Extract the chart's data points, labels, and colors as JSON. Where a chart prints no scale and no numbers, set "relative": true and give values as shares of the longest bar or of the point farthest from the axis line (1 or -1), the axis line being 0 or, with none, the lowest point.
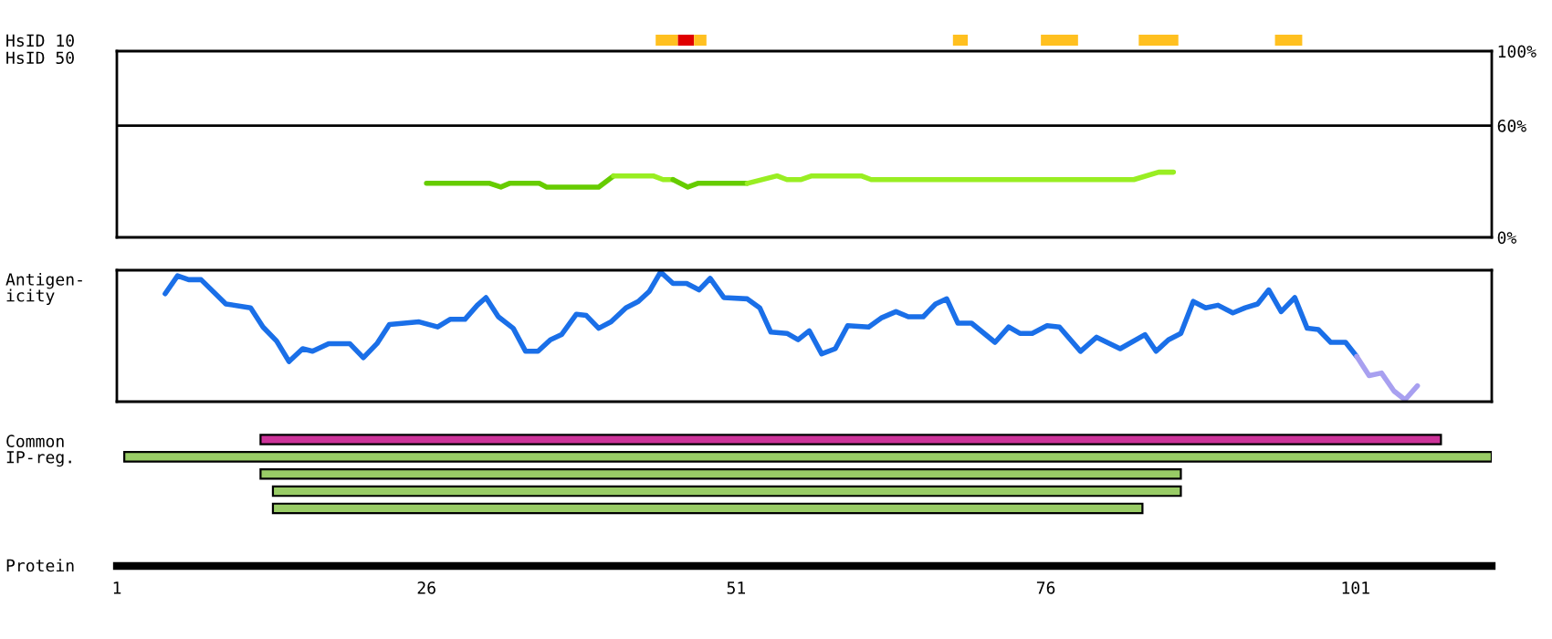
{
  "chart_data": [
    {
      "type": "bar",
      "orientation": "horizontal",
      "categories": [
        "HsID 10"
      ],
      "xlim": [
        1,
        112
      ],
      "tick_labels": "y",
      "series": [
        {
          "color": "#ffc020",
          "base": [
            44.5
          ],
          "values": [
            1.8
          ]
        },
        {
          "color": "#e00000",
          "base": [
            46.3
          ],
          "values": [
            1.3
          ]
        },
        {
          "color": "#ffc020",
          "base": [
            47.6
          ],
          "values": [
            1.0
          ]
        },
        {
          "color": "#ffc020",
          "base": [
            68.5
          ],
          "values": [
            1.2
          ]
        },
        {
          "color": "#ffc020",
          "base": [
            75.6
          ],
          "values": [
            3.0
          ]
        },
        {
          "color": "#ffc020",
          "base": [
            83.5
          ],
          "values": [
            3.2
          ]
        },
        {
          "color": "#ffc020",
          "base": [
            94.5
          ],
          "values": [
            2.2
          ]
        }
      ]
    },
    {
      "type": "line",
      "ylabel": "HsID 50",
      "xlim": [
        1,
        112
      ],
      "ylim": [
        0,
        100
      ],
      "tick_labels": "y",
      "yticks": [
        {
          "value": 0,
          "label": "0%"
        },
        {
          "value": 60,
          "label": "60%"
        },
        {
          "value": 100,
          "label": "100%"
        }
      ],
      "ref_lines": [
        {
          "axis": "y",
          "value": 60,
          "color": "#000000"
        }
      ],
      "series": [
        {
          "color": "#66cc00",
          "x": [
            26,
            31.1,
            32.0,
            32.7,
            35.1,
            35.7,
            39.9,
            41.1
          ],
          "values": [
            29,
            29,
            27,
            29,
            29,
            27,
            27,
            33
          ]
        },
        {
          "color": "#99ee22",
          "x": [
            41.1,
            44.3,
            45.1,
            45.9
          ],
          "values": [
            33,
            33,
            31,
            31
          ]
        },
        {
          "color": "#66cc00",
          "x": [
            45.9,
            47.1,
            47.9,
            51.9
          ],
          "values": [
            31,
            27,
            29,
            29
          ]
        },
        {
          "color": "#99ee22",
          "x": [
            51.9,
            54.3,
            55.1,
            56.2,
            57.1,
            61.1,
            61.9,
            83.1,
            85.1,
            86.3
          ],
          "values": [
            29,
            33,
            31,
            31,
            33,
            33,
            31,
            31,
            35,
            35
          ]
        }
      ]
    },
    {
      "type": "line",
      "ylabel": "Antigen-\nicity",
      "xlim": [
        1,
        112
      ],
      "relative": true,
      "tick_labels": false,
      "series": [
        {
          "color": "#1a6fe8",
          "x": [
            4.9,
            5.9,
            6.8,
            7.8,
            9.8,
            11.8,
            12.8,
            13.9,
            14.9,
            16.0,
            16.8,
            18.1,
            19.8,
            20.9,
            22.0,
            23.0,
            25.4,
            26.9,
            27.9,
            29.1,
            30.1,
            30.8,
            31.8,
            33.0,
            34.0,
            35.0,
            36.0,
            36.9,
            38.1,
            38.9,
            39.9,
            40.9,
            42.1,
            43.1,
            44.0,
            44.9,
            45.9,
            47.0,
            48.0,
            48.9,
            50.0,
            51.9,
            52.9,
            53.8,
            55.1,
            56.0,
            56.9,
            57.9,
            59.0,
            60.0,
            61.7,
            62.7,
            63.9,
            64.9,
            66.1,
            67.1,
            68.0,
            68.9,
            70.0,
            71.9,
            73.0,
            73.9,
            74.9,
            76.1,
            77.1,
            78.8,
            80.1,
            82.0,
            84.0,
            84.9,
            85.9,
            86.9,
            87.9,
            88.9,
            89.9,
            91.1,
            92.1,
            93.1,
            94.0,
            95.0,
            96.1,
            97.1,
            98.0,
            99.0,
            100.2,
            101.1
          ],
          "values": [
            0.83,
            0.97,
            0.94,
            0.94,
            0.75,
            0.72,
            0.57,
            0.46,
            0.3,
            0.4,
            0.38,
            0.44,
            0.44,
            0.33,
            0.44,
            0.59,
            0.61,
            0.57,
            0.63,
            0.63,
            0.74,
            0.8,
            0.65,
            0.56,
            0.38,
            0.38,
            0.47,
            0.51,
            0.67,
            0.66,
            0.56,
            0.61,
            0.72,
            0.77,
            0.85,
            1.0,
            0.91,
            0.91,
            0.86,
            0.95,
            0.8,
            0.79,
            0.72,
            0.53,
            0.52,
            0.47,
            0.54,
            0.36,
            0.4,
            0.58,
            0.57,
            0.64,
            0.69,
            0.65,
            0.65,
            0.75,
            0.79,
            0.6,
            0.6,
            0.45,
            0.57,
            0.52,
            0.52,
            0.58,
            0.57,
            0.38,
            0.49,
            0.4,
            0.51,
            0.38,
            0.47,
            0.52,
            0.77,
            0.72,
            0.74,
            0.68,
            0.72,
            0.75,
            0.86,
            0.69,
            0.8,
            0.56,
            0.55,
            0.45,
            0.45,
            0.34
          ]
        },
        {
          "color": "#a8a0f0",
          "x": [
            101.1,
            102.1,
            103.1,
            104.1,
            105.0,
            106.0
          ],
          "values": [
            0.34,
            0.19,
            0.21,
            0.07,
            0,
            0.11
          ]
        }
      ]
    },
    {
      "type": "bar",
      "orientation": "horizontal",
      "ylabel": "Common\nIP-reg.",
      "xlabel": "Protein",
      "categories": [
        null,
        null,
        null,
        null,
        null
      ],
      "base": [
        12.6,
        1.6,
        12.6,
        13.6,
        13.6
      ],
      "values": [
        95.3,
        110.4,
        74.3,
        73.3,
        70.2
      ],
      "colors": [
        "#cc3399",
        "#99cc66",
        "#99cc66",
        "#99cc66",
        "#99cc66"
      ],
      "xlim": [
        1,
        112
      ],
      "xticks": [
        1,
        26,
        51,
        76,
        101
      ],
      "tick_labels": "x"
    }
  ]
}
